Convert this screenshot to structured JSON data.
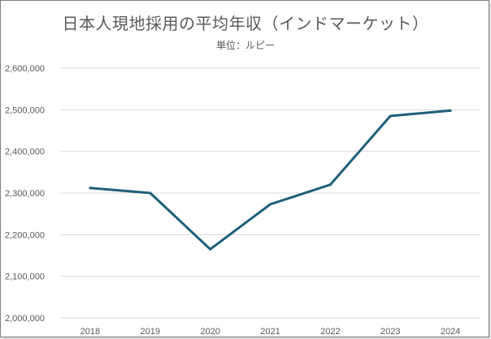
{
  "chart_data": {
    "type": "line",
    "title": "日本人現地採用の平均年収（インドマーケット）",
    "subtitle": "単位：ルピー",
    "xlabel": "",
    "ylabel": "",
    "categories": [
      "2018",
      "2019",
      "2020",
      "2021",
      "2022",
      "2023",
      "2024"
    ],
    "series": [
      {
        "values": [
          2312000,
          2300000,
          2165000,
          2273000,
          2320000,
          2485000,
          2498000
        ]
      }
    ],
    "ylim": [
      2000000,
      2600000
    ],
    "yticks": [
      "2,000,000",
      "2,100,000",
      "2,200,000",
      "2,300,000",
      "2,400,000",
      "2,500,000",
      "2,600,000"
    ],
    "ytick_values": [
      2000000,
      2100000,
      2200000,
      2300000,
      2400000,
      2500000,
      2600000
    ],
    "grid": true,
    "legend": "none",
    "colors": {
      "line": "#1f5f7a",
      "grid": "#d9d9d9",
      "text": "#595959"
    }
  }
}
